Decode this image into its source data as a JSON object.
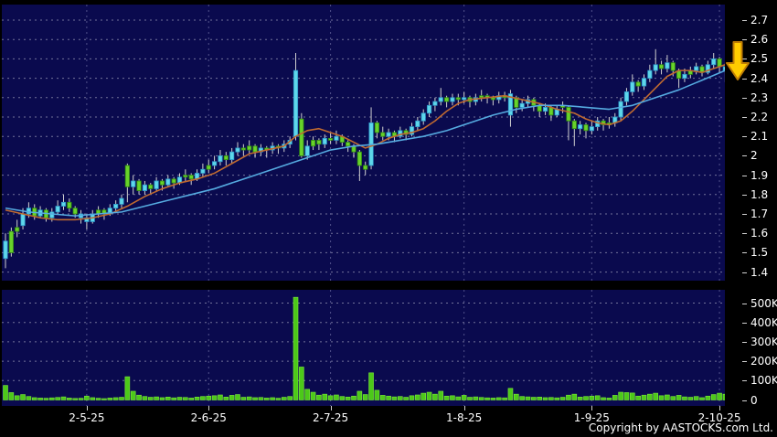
{
  "window": {
    "bg": "#000000"
  },
  "footer": {
    "copyright": "Copyright by AASTOCKS.com Ltd."
  },
  "colors": {
    "pane_bg": "#0a0a4e",
    "h_grid": "#c8c8d8",
    "v_grid": "#9a9ac8",
    "wick": "#d0d0d0",
    "candle_cyan_fill": "#5ed7ea",
    "candle_cyan_stroke": "#2d96c8",
    "candle_green_fill": "#68d22a",
    "candle_green_stroke": "#2f8a12",
    "volume_bar_fill": "#4cc919",
    "volume_bar_stroke": "#7fe93d",
    "label_text": "#ffffff",
    "arrow_fill": "#ffcc00",
    "arrow_stroke": "#bf7d05"
  },
  "chart_data": {
    "type": "candlestick",
    "title": "",
    "legend_position": "none",
    "grid": "dashed",
    "price_axis": {
      "side": "right",
      "ticks": [
        "2.7",
        "2.6",
        "2.5",
        "2.4",
        "2.3",
        "2.2",
        "2.1",
        "2",
        "1.9",
        "1.8",
        "1.7",
        "1.6",
        "1.5",
        "1.4"
      ],
      "range": [
        1.38,
        2.78
      ]
    },
    "volume_axis": {
      "side": "right",
      "ticks": [
        "500K",
        "400K",
        "300K",
        "200K",
        "100K",
        "0"
      ],
      "unit": "K",
      "range_k": [
        0,
        560
      ]
    },
    "x_axis": {
      "labels": [
        {
          "label": "2-5-25",
          "index": 14
        },
        {
          "label": "2-6-25",
          "index": 35
        },
        {
          "label": "2-7-25",
          "index": 56
        },
        {
          "label": "1-8-25",
          "index": 79
        },
        {
          "label": "1-9-25",
          "index": 101
        },
        {
          "label": "2-10-25",
          "index": 123
        }
      ]
    },
    "candle_format": [
      "open",
      "high",
      "low",
      "close",
      "color c=cyan g=green",
      "volume_K"
    ],
    "candles": [
      [
        1.56,
        1.6,
        1.42,
        1.47,
        "c",
        75
      ],
      [
        1.5,
        1.63,
        1.48,
        1.61,
        "g",
        38
      ],
      [
        1.61,
        1.67,
        1.58,
        1.63,
        "g",
        22
      ],
      [
        1.64,
        1.73,
        1.62,
        1.7,
        "c",
        28
      ],
      [
        1.7,
        1.76,
        1.68,
        1.73,
        "c",
        18
      ],
      [
        1.73,
        1.75,
        1.67,
        1.69,
        "g",
        12
      ],
      [
        1.69,
        1.74,
        1.68,
        1.72,
        "c",
        10
      ],
      [
        1.72,
        1.73,
        1.66,
        1.68,
        "g",
        9
      ],
      [
        1.68,
        1.73,
        1.66,
        1.71,
        "c",
        11
      ],
      [
        1.71,
        1.77,
        1.7,
        1.74,
        "c",
        13
      ],
      [
        1.74,
        1.8,
        1.72,
        1.76,
        "c",
        16
      ],
      [
        1.76,
        1.78,
        1.71,
        1.73,
        "g",
        10
      ],
      [
        1.73,
        1.74,
        1.68,
        1.7,
        "g",
        8
      ],
      [
        1.7,
        1.72,
        1.65,
        1.68,
        "c",
        9
      ],
      [
        1.68,
        1.7,
        1.62,
        1.66,
        "c",
        20
      ],
      [
        1.66,
        1.72,
        1.65,
        1.7,
        "c",
        12
      ],
      [
        1.7,
        1.74,
        1.68,
        1.72,
        "g",
        9
      ],
      [
        1.72,
        1.73,
        1.67,
        1.7,
        "g",
        7
      ],
      [
        1.7,
        1.75,
        1.69,
        1.73,
        "c",
        10
      ],
      [
        1.73,
        1.77,
        1.71,
        1.75,
        "c",
        12
      ],
      [
        1.75,
        1.8,
        1.73,
        1.78,
        "c",
        14
      ],
      [
        1.95,
        1.96,
        1.76,
        1.84,
        "g",
        120
      ],
      [
        1.84,
        1.9,
        1.8,
        1.87,
        "c",
        45
      ],
      [
        1.87,
        1.88,
        1.8,
        1.82,
        "g",
        25
      ],
      [
        1.82,
        1.87,
        1.8,
        1.85,
        "c",
        18
      ],
      [
        1.85,
        1.86,
        1.8,
        1.83,
        "g",
        14
      ],
      [
        1.83,
        1.89,
        1.82,
        1.87,
        "c",
        16
      ],
      [
        1.87,
        1.88,
        1.82,
        1.85,
        "g",
        12
      ],
      [
        1.85,
        1.9,
        1.84,
        1.88,
        "c",
        15
      ],
      [
        1.88,
        1.89,
        1.83,
        1.86,
        "g",
        11
      ],
      [
        1.86,
        1.91,
        1.85,
        1.89,
        "c",
        14
      ],
      [
        1.89,
        1.93,
        1.87,
        1.9,
        "g",
        13
      ],
      [
        1.9,
        1.91,
        1.85,
        1.88,
        "g",
        10
      ],
      [
        1.88,
        1.93,
        1.87,
        1.91,
        "c",
        15
      ],
      [
        1.91,
        1.96,
        1.89,
        1.93,
        "c",
        18
      ],
      [
        1.93,
        1.98,
        1.91,
        1.95,
        "g",
        20
      ],
      [
        1.95,
        2.0,
        1.93,
        1.97,
        "c",
        22
      ],
      [
        1.97,
        2.03,
        1.95,
        2.0,
        "c",
        26
      ],
      [
        2.0,
        2.02,
        1.95,
        1.98,
        "g",
        15
      ],
      [
        1.98,
        2.04,
        1.96,
        2.02,
        "c",
        24
      ],
      [
        2.02,
        2.07,
        2.0,
        2.04,
        "c",
        28
      ],
      [
        2.04,
        2.06,
        2.0,
        2.03,
        "g",
        14
      ],
      [
        2.03,
        2.08,
        2.01,
        2.05,
        "g",
        16
      ],
      [
        2.05,
        2.06,
        1.99,
        2.02,
        "g",
        12
      ],
      [
        2.02,
        2.06,
        2.0,
        2.04,
        "c",
        13
      ],
      [
        2.04,
        2.05,
        1.99,
        2.03,
        "g",
        10
      ],
      [
        2.03,
        2.07,
        2.01,
        2.05,
        "c",
        12
      ],
      [
        2.05,
        2.06,
        2.01,
        2.04,
        "g",
        9
      ],
      [
        2.04,
        2.08,
        2.02,
        2.06,
        "c",
        14
      ],
      [
        2.06,
        2.1,
        2.04,
        2.08,
        "c",
        18
      ],
      [
        2.1,
        2.53,
        2.08,
        2.44,
        "c",
        530
      ],
      [
        2.19,
        2.22,
        1.99,
        2.0,
        "g",
        170
      ],
      [
        2.0,
        2.08,
        1.98,
        2.05,
        "c",
        55
      ],
      [
        2.05,
        2.1,
        2.03,
        2.08,
        "g",
        40
      ],
      [
        2.08,
        2.09,
        2.03,
        2.06,
        "g",
        25
      ],
      [
        2.06,
        2.11,
        2.04,
        2.09,
        "c",
        30
      ],
      [
        2.09,
        2.12,
        2.06,
        2.08,
        "g",
        22
      ],
      [
        2.08,
        2.13,
        2.06,
        2.1,
        "c",
        26
      ],
      [
        2.1,
        2.11,
        2.05,
        2.07,
        "g",
        18
      ],
      [
        2.07,
        2.08,
        2.02,
        2.05,
        "g",
        15
      ],
      [
        2.05,
        2.06,
        1.99,
        2.02,
        "g",
        20
      ],
      [
        2.02,
        2.03,
        1.87,
        1.95,
        "g",
        45
      ],
      [
        1.95,
        1.97,
        1.9,
        1.93,
        "g",
        28
      ],
      [
        1.95,
        2.25,
        1.93,
        2.17,
        "c",
        140
      ],
      [
        2.17,
        2.18,
        2.09,
        2.12,
        "g",
        50
      ],
      [
        2.12,
        2.15,
        2.08,
        2.1,
        "g",
        24
      ],
      [
        2.1,
        2.14,
        2.08,
        2.12,
        "c",
        20
      ],
      [
        2.12,
        2.13,
        2.07,
        2.1,
        "g",
        16
      ],
      [
        2.1,
        2.15,
        2.09,
        2.13,
        "c",
        18
      ],
      [
        2.13,
        2.14,
        2.08,
        2.11,
        "g",
        14
      ],
      [
        2.11,
        2.17,
        2.1,
        2.15,
        "c",
        22
      ],
      [
        2.15,
        2.2,
        2.13,
        2.18,
        "c",
        26
      ],
      [
        2.18,
        2.24,
        2.16,
        2.22,
        "c",
        35
      ],
      [
        2.22,
        2.28,
        2.2,
        2.26,
        "c",
        40
      ],
      [
        2.26,
        2.3,
        2.23,
        2.28,
        "c",
        30
      ],
      [
        2.28,
        2.35,
        2.26,
        2.3,
        "c",
        45
      ],
      [
        2.3,
        2.31,
        2.25,
        2.28,
        "g",
        20
      ],
      [
        2.28,
        2.32,
        2.26,
        2.3,
        "c",
        22
      ],
      [
        2.3,
        2.32,
        2.26,
        2.29,
        "g",
        16
      ],
      [
        2.29,
        2.33,
        2.27,
        2.3,
        "c",
        24
      ],
      [
        2.3,
        2.31,
        2.25,
        2.28,
        "g",
        14
      ],
      [
        2.28,
        2.32,
        2.26,
        2.3,
        "c",
        16
      ],
      [
        2.3,
        2.34,
        2.28,
        2.31,
        "g",
        13
      ],
      [
        2.31,
        2.32,
        2.27,
        2.3,
        "g",
        11
      ],
      [
        2.3,
        2.31,
        2.26,
        2.29,
        "g",
        10
      ],
      [
        2.29,
        2.33,
        2.27,
        2.31,
        "c",
        12
      ],
      [
        2.31,
        2.33,
        2.28,
        2.3,
        "g",
        11
      ],
      [
        2.21,
        2.34,
        2.15,
        2.32,
        "c",
        60
      ],
      [
        2.3,
        2.31,
        2.22,
        2.25,
        "g",
        30
      ],
      [
        2.25,
        2.29,
        2.23,
        2.27,
        "c",
        18
      ],
      [
        2.27,
        2.31,
        2.25,
        2.29,
        "c",
        16
      ],
      [
        2.29,
        2.3,
        2.23,
        2.26,
        "g",
        14
      ],
      [
        2.26,
        2.27,
        2.2,
        2.23,
        "g",
        15
      ],
      [
        2.23,
        2.27,
        2.21,
        2.25,
        "c",
        12
      ],
      [
        2.25,
        2.26,
        2.18,
        2.21,
        "g",
        13
      ],
      [
        2.21,
        2.26,
        2.2,
        2.24,
        "c",
        11
      ],
      [
        2.26,
        2.28,
        2.22,
        2.25,
        "g",
        14
      ],
      [
        2.25,
        2.26,
        2.08,
        2.18,
        "g",
        25
      ],
      [
        2.18,
        2.19,
        2.05,
        2.14,
        "g",
        30
      ],
      [
        2.14,
        2.18,
        2.11,
        2.16,
        "c",
        15
      ],
      [
        2.16,
        2.17,
        2.09,
        2.13,
        "g",
        18
      ],
      [
        2.13,
        2.18,
        2.11,
        2.15,
        "c",
        20
      ],
      [
        2.15,
        2.2,
        2.13,
        2.18,
        "c",
        22
      ],
      [
        2.18,
        2.19,
        2.13,
        2.16,
        "g",
        12
      ],
      [
        2.16,
        2.2,
        2.14,
        2.17,
        "g",
        10
      ],
      [
        2.17,
        2.22,
        2.15,
        2.2,
        "c",
        24
      ],
      [
        2.2,
        2.3,
        2.18,
        2.28,
        "c",
        40
      ],
      [
        2.28,
        2.35,
        2.26,
        2.33,
        "c",
        38
      ],
      [
        2.33,
        2.42,
        2.31,
        2.38,
        "c",
        36
      ],
      [
        2.38,
        2.39,
        2.33,
        2.36,
        "g",
        20
      ],
      [
        2.36,
        2.42,
        2.34,
        2.4,
        "c",
        25
      ],
      [
        2.4,
        2.47,
        2.38,
        2.44,
        "c",
        30
      ],
      [
        2.44,
        2.55,
        2.42,
        2.47,
        "c",
        35
      ],
      [
        2.47,
        2.49,
        2.42,
        2.45,
        "g",
        22
      ],
      [
        2.45,
        2.52,
        2.43,
        2.48,
        "c",
        26
      ],
      [
        2.48,
        2.49,
        2.41,
        2.44,
        "g",
        18
      ],
      [
        2.44,
        2.45,
        2.35,
        2.4,
        "g",
        24
      ],
      [
        2.4,
        2.45,
        2.38,
        2.42,
        "c",
        16
      ],
      [
        2.42,
        2.46,
        2.4,
        2.44,
        "g",
        14
      ],
      [
        2.44,
        2.48,
        2.42,
        2.46,
        "c",
        18
      ],
      [
        2.46,
        2.47,
        2.41,
        2.43,
        "g",
        12
      ],
      [
        2.43,
        2.49,
        2.42,
        2.47,
        "c",
        20
      ],
      [
        2.47,
        2.53,
        2.45,
        2.5,
        "c",
        28
      ],
      [
        2.5,
        2.51,
        2.43,
        2.46,
        "g",
        35
      ],
      [
        2.46,
        2.48,
        2.38,
        2.44,
        "c",
        30
      ]
    ],
    "overlays": [
      {
        "name": "ma-fast",
        "color": "#c06a30",
        "points": [
          [
            0,
            1.72
          ],
          [
            3,
            1.7
          ],
          [
            6,
            1.68
          ],
          [
            9,
            1.67
          ],
          [
            12,
            1.67
          ],
          [
            15,
            1.68
          ],
          [
            18,
            1.7
          ],
          [
            21,
            1.74
          ],
          [
            24,
            1.79
          ],
          [
            27,
            1.83
          ],
          [
            30,
            1.86
          ],
          [
            33,
            1.88
          ],
          [
            36,
            1.91
          ],
          [
            39,
            1.96
          ],
          [
            42,
            2.01
          ],
          [
            45,
            2.03
          ],
          [
            48,
            2.05
          ],
          [
            50,
            2.1
          ],
          [
            52,
            2.13
          ],
          [
            54,
            2.14
          ],
          [
            56,
            2.12
          ],
          [
            58,
            2.1
          ],
          [
            60,
            2.07
          ],
          [
            62,
            2.04
          ],
          [
            64,
            2.06
          ],
          [
            66,
            2.09
          ],
          [
            68,
            2.11
          ],
          [
            70,
            2.12
          ],
          [
            72,
            2.14
          ],
          [
            74,
            2.18
          ],
          [
            76,
            2.23
          ],
          [
            78,
            2.27
          ],
          [
            80,
            2.29
          ],
          [
            83,
            2.3
          ],
          [
            86,
            2.31
          ],
          [
            89,
            2.29
          ],
          [
            92,
            2.27
          ],
          [
            95,
            2.24
          ],
          [
            98,
            2.22
          ],
          [
            100,
            2.19
          ],
          [
            102,
            2.17
          ],
          [
            104,
            2.16
          ],
          [
            106,
            2.18
          ],
          [
            108,
            2.23
          ],
          [
            110,
            2.29
          ],
          [
            112,
            2.35
          ],
          [
            114,
            2.41
          ],
          [
            116,
            2.44
          ],
          [
            118,
            2.44
          ],
          [
            120,
            2.43
          ],
          [
            122,
            2.45
          ],
          [
            124,
            2.47
          ]
        ]
      },
      {
        "name": "ma-slow",
        "color": "#55aae0",
        "points": [
          [
            0,
            1.73
          ],
          [
            4,
            1.71
          ],
          [
            8,
            1.7
          ],
          [
            12,
            1.69
          ],
          [
            16,
            1.7
          ],
          [
            20,
            1.71
          ],
          [
            24,
            1.74
          ],
          [
            28,
            1.77
          ],
          [
            32,
            1.8
          ],
          [
            36,
            1.83
          ],
          [
            40,
            1.87
          ],
          [
            44,
            1.91
          ],
          [
            48,
            1.95
          ],
          [
            52,
            1.99
          ],
          [
            56,
            2.03
          ],
          [
            60,
            2.05
          ],
          [
            64,
            2.06
          ],
          [
            68,
            2.08
          ],
          [
            72,
            2.1
          ],
          [
            76,
            2.13
          ],
          [
            80,
            2.17
          ],
          [
            84,
            2.21
          ],
          [
            88,
            2.24
          ],
          [
            92,
            2.26
          ],
          [
            96,
            2.26
          ],
          [
            100,
            2.25
          ],
          [
            104,
            2.24
          ],
          [
            108,
            2.26
          ],
          [
            112,
            2.3
          ],
          [
            116,
            2.34
          ],
          [
            120,
            2.39
          ],
          [
            124,
            2.44
          ]
        ]
      }
    ],
    "annotations": [
      {
        "type": "down-arrow",
        "color": "#ffcc00",
        "near_price": 2.5,
        "position": "right-edge"
      }
    ]
  }
}
